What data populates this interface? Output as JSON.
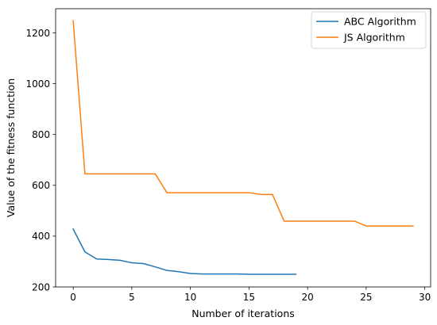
{
  "chart_data": {
    "type": "line",
    "title": "",
    "xlabel": "Number of iterations",
    "ylabel": "Value of the fitness function",
    "xlim": [
      -1.5,
      30.5
    ],
    "ylim": [
      200,
      1295
    ],
    "xticks": [
      0,
      5,
      10,
      15,
      20,
      25,
      30
    ],
    "yticks": [
      200,
      400,
      600,
      800,
      1000,
      1200
    ],
    "grid": false,
    "legend_position": "top-right",
    "series": [
      {
        "name": "ABC Algorithm",
        "color": "#1f77b4",
        "x": [
          0,
          1,
          2,
          3,
          4,
          5,
          6,
          7,
          8,
          9,
          10,
          11,
          12,
          13,
          14,
          15,
          16,
          17,
          18,
          19
        ],
        "y": [
          428,
          338,
          310,
          308,
          305,
          295,
          292,
          279,
          265,
          260,
          253,
          251,
          251,
          251,
          251,
          250,
          250,
          250,
          250,
          250
        ]
      },
      {
        "name": "JS Algorithm",
        "color": "#ff7f0e",
        "x": [
          0,
          1,
          2,
          3,
          4,
          5,
          6,
          7,
          8,
          9,
          10,
          11,
          12,
          13,
          14,
          15,
          16,
          17,
          18,
          19,
          20,
          21,
          22,
          23,
          24,
          25,
          26,
          27,
          28,
          29
        ],
        "y": [
          1248,
          645,
          645,
          645,
          645,
          645,
          645,
          645,
          571,
          571,
          571,
          571,
          571,
          571,
          571,
          571,
          564,
          564,
          459,
          459,
          459,
          459,
          459,
          459,
          459,
          440,
          440,
          440,
          440,
          440
        ]
      }
    ]
  }
}
